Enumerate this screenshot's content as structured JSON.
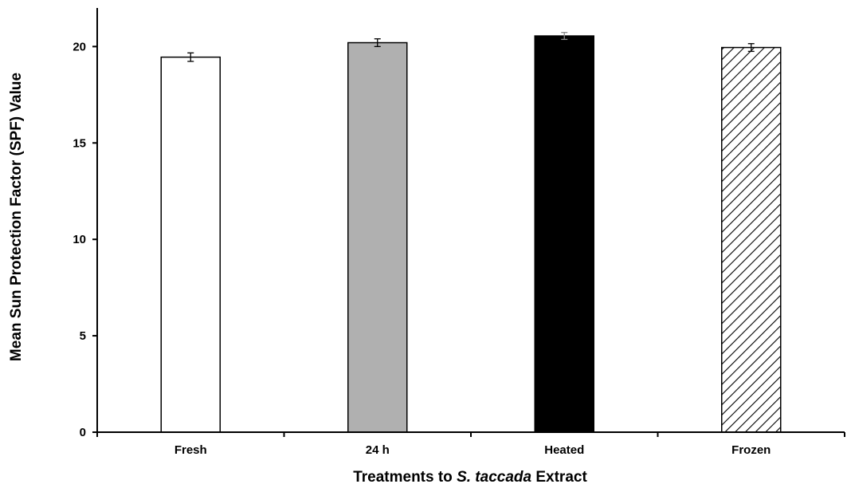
{
  "chart_data": {
    "type": "bar",
    "categories": [
      "Fresh",
      "24 h",
      "Heated",
      "Frozen"
    ],
    "values": [
      19.45,
      20.2,
      20.55,
      19.95
    ],
    "errors": [
      0.22,
      0.2,
      0.18,
      0.2
    ],
    "bar_styles": [
      "white",
      "gray",
      "black",
      "hatched"
    ],
    "colors": {
      "white": "#ffffff",
      "gray": "#b0b0b0",
      "black": "#000000",
      "hatch_line": "#000000",
      "outline": "#000000"
    },
    "title": "",
    "xlabel_parts": [
      "Treatments to ",
      "S. taccada",
      " Extract"
    ],
    "ylabel": "Mean Sun Protection Factor (SPF) Value",
    "ylim": [
      0,
      22
    ],
    "yticks": [
      0,
      5,
      10,
      15,
      20
    ],
    "grid": false,
    "legend": false
  }
}
